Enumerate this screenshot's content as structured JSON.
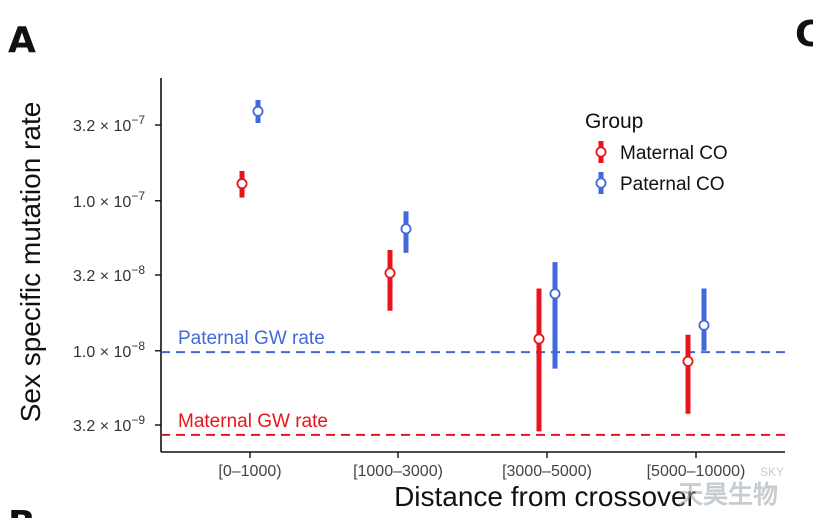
{
  "panel": {
    "letter": "A",
    "next_letter_right": "C",
    "next_letter_bottom": "B"
  },
  "watermark": {
    "main": "天昊生物",
    "small": "SKY"
  },
  "chart_data": {
    "type": "scatter",
    "subtype": "point-range",
    "title": "",
    "xlabel": "Distance from crossover",
    "ylabel": "Sex specific mutation rate",
    "y_scale": "log10",
    "ylim": [
      2.6e-09,
      6.2e-07
    ],
    "categories": [
      "[0–1000)",
      "[1000–3000)",
      "[3000–5000)",
      "[5000–10000)"
    ],
    "y_ticks": [
      {
        "value": 3.2e-09,
        "mantissa": "3.2",
        "exponent": "−9"
      },
      {
        "value": 1e-08,
        "mantissa": "1.0",
        "exponent": "−8"
      },
      {
        "value": 3.2e-08,
        "mantissa": "3.2",
        "exponent": "−8"
      },
      {
        "value": 1e-07,
        "mantissa": "1.0",
        "exponent": "−7"
      },
      {
        "value": 3.2e-07,
        "mantissa": "3.2",
        "exponent": "−7"
      }
    ],
    "legend": {
      "title": "Group",
      "position": "top-right"
    },
    "grid": false,
    "series": [
      {
        "name": "Maternal CO",
        "color": "#e8141b",
        "values": [
          1.3e-07,
          3.3e-08,
          1.2e-08,
          8.5e-09
        ],
        "lower": [
          1.05e-07,
          1.85e-08,
          2.9e-09,
          3.8e-09
        ],
        "upper": [
          1.58e-07,
          4.7e-08,
          2.6e-08,
          1.28e-08
        ]
      },
      {
        "name": "Paternal CO",
        "color": "#4169d9",
        "values": [
          3.95e-07,
          6.5e-08,
          2.4e-08,
          1.48e-08
        ],
        "lower": [
          3.3e-07,
          4.5e-08,
          7.6e-09,
          1e-08
        ],
        "upper": [
          4.7e-07,
          8.5e-08,
          3.9e-08,
          2.6e-08
        ]
      }
    ],
    "reference_lines": [
      {
        "label": "Paternal GW rate",
        "value": 9.8e-09,
        "color": "#4169d9",
        "style": "dashed"
      },
      {
        "label": "Maternal GW rate",
        "value": 2.75e-09,
        "color": "#e8141b",
        "style": "dashed"
      }
    ]
  }
}
